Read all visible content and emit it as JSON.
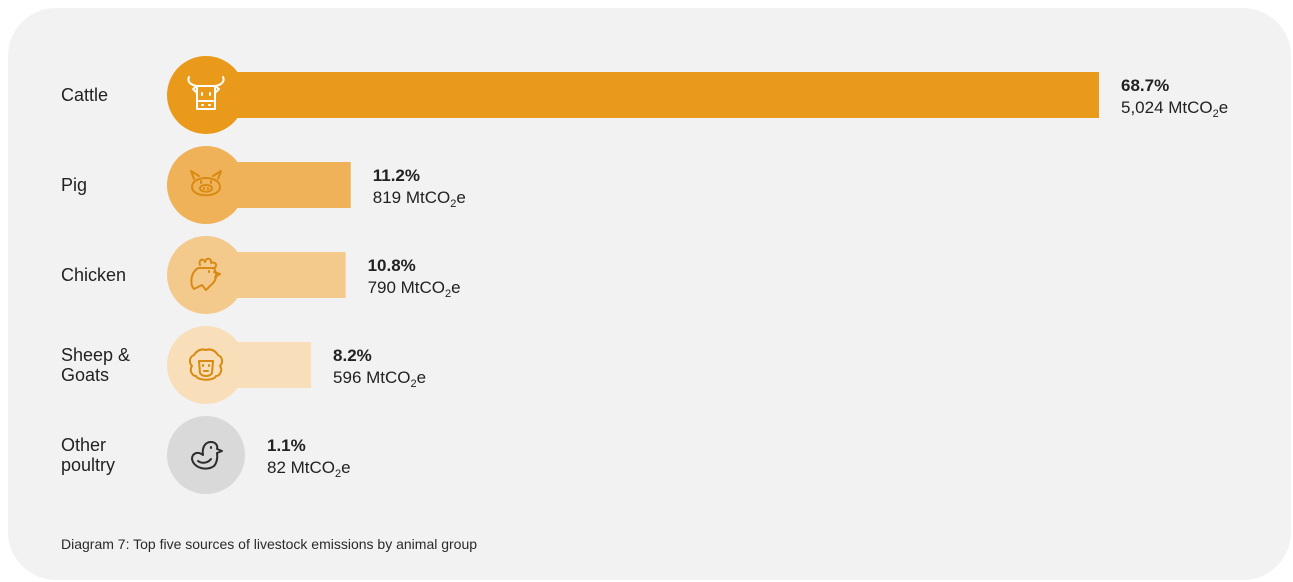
{
  "chart_data": {
    "type": "bar",
    "orientation": "horizontal",
    "caption": "Diagram 7: Top five sources of livestock emissions by animal group",
    "unit_prefix": "MtCO",
    "unit_subscript": "2",
    "unit_suffix": "e",
    "categories": [
      {
        "label_lines": [
          "Cattle"
        ],
        "value": 5024,
        "percent": "68.7%",
        "amount": "5,024",
        "color": "#e99a1b",
        "icon": "cow-icon"
      },
      {
        "label_lines": [
          "Pig"
        ],
        "value": 819,
        "percent": "11.2%",
        "amount": "819",
        "color": "#efb259",
        "icon": "pig-icon"
      },
      {
        "label_lines": [
          "Chicken"
        ],
        "value": 790,
        "percent": "10.8%",
        "amount": "790",
        "color": "#f4c98c",
        "icon": "chicken-icon"
      },
      {
        "label_lines": [
          "Sheep &",
          "Goats"
        ],
        "value": 596,
        "percent": "8.2%",
        "amount": "596",
        "color": "#f8dfb9",
        "icon": "sheep-icon"
      },
      {
        "label_lines": [
          "Other",
          "poultry"
        ],
        "value": 82,
        "percent": "1.1%",
        "amount": "82",
        "color": "#d9d9d9",
        "icon": "duck-icon"
      }
    ],
    "xlim": [
      0,
      5024
    ]
  }
}
